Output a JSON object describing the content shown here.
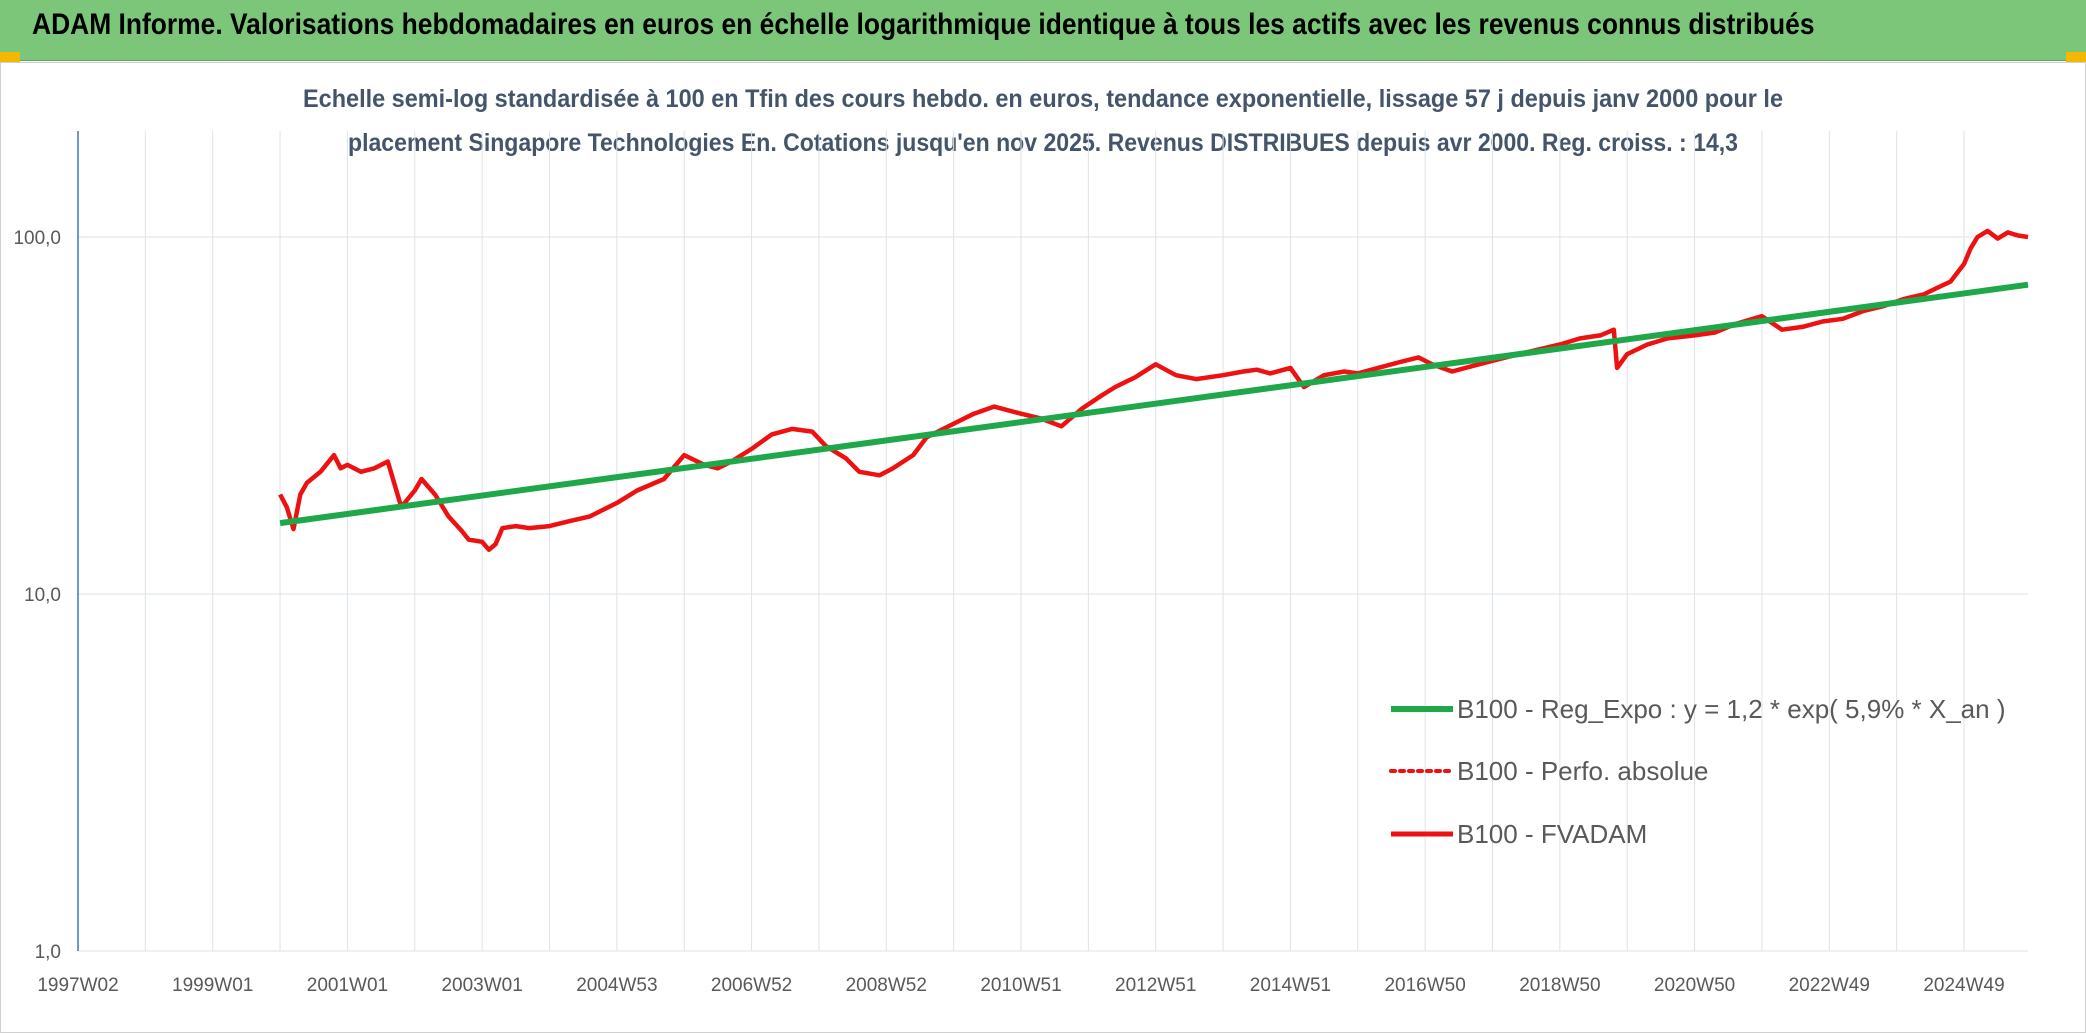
{
  "header": {
    "title": "ADAM Informe. Valorisations hebdomadaires en euros en échelle logarithmique identique à tous les actifs avec les revenus connus distribués"
  },
  "colors": {
    "header_bg": "#7cc67a",
    "accent": "#f5b800",
    "regression": "#1fa84a",
    "fvadam": "#ee1111",
    "perfo": "#ee1111"
  },
  "chart_data": {
    "type": "line",
    "subtitle_line1": "Echelle semi-log standardisée à 100 en Tfin des cours hebdo. en euros, tendance exponentielle, lissage 57 j depuis janv 2000 pour le",
    "subtitle_line2": "placement Singapore Technologies En. Cotations jusqu'en nov 2025. Revenus DISTRIBUES depuis avr 2000. Reg. croiss. : 14,3",
    "y_scale": "log",
    "ylim": [
      1,
      300
    ],
    "y_ticks": [
      {
        "value": 1,
        "label": "1,0"
      },
      {
        "value": 10,
        "label": "10,0"
      },
      {
        "value": 100,
        "label": "100,0"
      }
    ],
    "x_range": [
      1997.0,
      2025.95
    ],
    "x_ticks": [
      {
        "value": 1997.0,
        "label": "1997W02"
      },
      {
        "value": 1999.0,
        "label": "1999W01"
      },
      {
        "value": 2001.0,
        "label": "2001W01"
      },
      {
        "value": 2003.0,
        "label": "2003W01"
      },
      {
        "value": 2005.0,
        "label": "2004W53"
      },
      {
        "value": 2007.0,
        "label": "2006W52"
      },
      {
        "value": 2009.0,
        "label": "2008W52"
      },
      {
        "value": 2011.0,
        "label": "2010W51"
      },
      {
        "value": 2013.0,
        "label": "2012W51"
      },
      {
        "value": 2015.0,
        "label": "2014W51"
      },
      {
        "value": 2017.0,
        "label": "2016W50"
      },
      {
        "value": 2019.0,
        "label": "2018W50"
      },
      {
        "value": 2021.0,
        "label": "2020W50"
      },
      {
        "value": 2023.0,
        "label": "2022W49"
      },
      {
        "value": 2025.0,
        "label": "2024W49"
      }
    ],
    "grid": true,
    "legend_position": "bottom-right",
    "series": [
      {
        "name": "B100 - Reg_Expo : y = 1,2 * exp( 5,9% *  X_an )",
        "style": "solid-thick",
        "color": "#1fa84a",
        "x": [
          2000.0,
          2025.95
        ],
        "y": [
          15.8,
          73.5
        ]
      },
      {
        "name": "B100 - Perfo. absolue",
        "style": "dotted",
        "color": "#ee1111",
        "x": [],
        "y": []
      },
      {
        "name": "B100 - FVADAM",
        "style": "solid",
        "color": "#ee1111",
        "x": [
          2000.0,
          2000.1,
          2000.2,
          2000.3,
          2000.4,
          2000.6,
          2000.8,
          2000.9,
          2001.0,
          2001.2,
          2001.4,
          2001.6,
          2001.8,
          2001.9,
          2002.0,
          2002.1,
          2002.3,
          2002.5,
          2002.7,
          2002.8,
          2003.0,
          2003.1,
          2003.2,
          2003.3,
          2003.5,
          2003.7,
          2004.0,
          2004.3,
          2004.6,
          2005.0,
          2005.3,
          2005.7,
          2006.0,
          2006.3,
          2006.5,
          2006.7,
          2007.0,
          2007.3,
          2007.6,
          2007.9,
          2008.1,
          2008.4,
          2008.6,
          2008.9,
          2009.1,
          2009.4,
          2009.6,
          2010.0,
          2010.3,
          2010.6,
          2011.0,
          2011.3,
          2011.6,
          2011.9,
          2012.2,
          2012.4,
          2012.7,
          2013.0,
          2013.3,
          2013.6,
          2014.0,
          2014.3,
          2014.5,
          2014.7,
          2015.0,
          2015.2,
          2015.5,
          2015.8,
          2016.0,
          2016.3,
          2016.6,
          2016.9,
          2017.1,
          2017.4,
          2017.7,
          2018.0,
          2018.3,
          2018.6,
          2019.0,
          2019.3,
          2019.6,
          2019.8,
          2019.85,
          2020.0,
          2020.3,
          2020.6,
          2021.0,
          2021.3,
          2021.6,
          2022.0,
          2022.3,
          2022.6,
          2022.9,
          2023.2,
          2023.5,
          2023.8,
          2024.1,
          2024.4,
          2024.6,
          2024.8,
          2025.0,
          2025.1,
          2025.2,
          2025.35,
          2025.5,
          2025.65,
          2025.8,
          2025.95
        ],
        "y": [
          19.0,
          17.5,
          15.2,
          19.0,
          20.5,
          22.0,
          24.5,
          22.5,
          23.0,
          22.0,
          22.5,
          23.5,
          17.5,
          18.5,
          19.5,
          21.0,
          19.0,
          16.5,
          15.0,
          14.2,
          14.0,
          13.3,
          13.8,
          15.3,
          15.5,
          15.3,
          15.5,
          16.0,
          16.5,
          18.0,
          19.5,
          21.0,
          24.5,
          23.0,
          22.5,
          23.5,
          25.5,
          28.0,
          29.0,
          28.5,
          26.0,
          24.0,
          22.0,
          21.5,
          22.5,
          24.5,
          27.5,
          30.0,
          32.0,
          33.5,
          32.0,
          31.0,
          29.5,
          33.0,
          36.0,
          38.0,
          40.5,
          44.0,
          41.0,
          40.0,
          41.0,
          42.0,
          42.5,
          41.5,
          43.0,
          38.0,
          41.0,
          42.0,
          41.5,
          43.0,
          44.5,
          46.0,
          44.0,
          42.0,
          43.5,
          45.0,
          46.5,
          48.0,
          50.0,
          52.0,
          53.0,
          55.0,
          43.0,
          47.0,
          50.0,
          52.0,
          53.0,
          54.0,
          57.0,
          60.0,
          55.0,
          56.0,
          58.0,
          59.0,
          62.0,
          64.0,
          67.0,
          69.0,
          72.0,
          75.0,
          84.0,
          93.0,
          100.0,
          104.0,
          99.0,
          103.0,
          101.0,
          100.0
        ]
      }
    ]
  }
}
